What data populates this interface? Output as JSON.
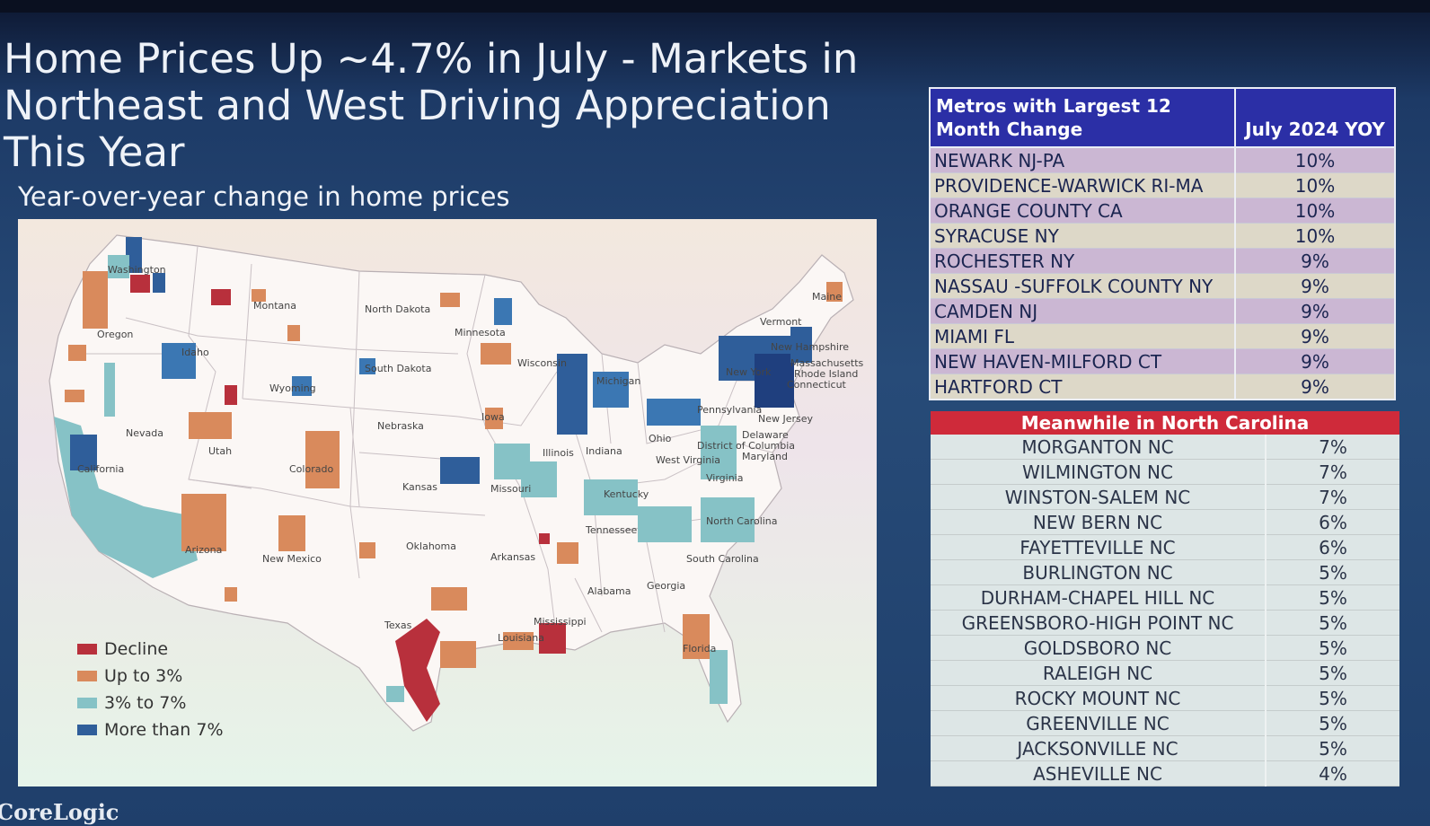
{
  "slide": {
    "title": "Home Prices Up ~4.7% in July - Markets in Northeast and West Driving Appreciation This Year",
    "subtitle": "Year-over-year change in home prices",
    "brand": "CoreLogic"
  },
  "map": {
    "state_labels": [
      "Washington",
      "Oregon",
      "Idaho",
      "Montana",
      "Wyoming",
      "Nevada",
      "Utah",
      "California",
      "Colorado",
      "Arizona",
      "New Mexico",
      "North Dakota",
      "South Dakota",
      "Nebraska",
      "Kansas",
      "Oklahoma",
      "Texas",
      "Minnesota",
      "Iowa",
      "Missouri",
      "Arkansas",
      "Louisiana",
      "Wisconsin",
      "Illinois",
      "Michigan",
      "Indiana",
      "Ohio",
      "Kentucky",
      "Tennessee",
      "Mississippi",
      "Alabama",
      "Georgia",
      "Florida",
      "South Carolina",
      "North Carolina",
      "Virginia",
      "West Virginia",
      "Pennsylvania",
      "New York",
      "Vermont",
      "New Hampshire",
      "Maine",
      "Massachusetts",
      "Rhode Island",
      "Connecticut",
      "New Jersey",
      "Delaware",
      "Maryland",
      "District of Columbia"
    ],
    "legend": [
      {
        "label": "Decline",
        "color": "#b8303c"
      },
      {
        "label": "Up to 3%",
        "color": "#d98a5c"
      },
      {
        "label": "3% to 7%",
        "color": "#86c2c6"
      },
      {
        "label": "More than 7%",
        "color": "#2f5e9a"
      }
    ]
  },
  "metros": {
    "header_left": "Metros with Largest 12 Month Change",
    "header_right": "July 2024 YOY",
    "rows": [
      {
        "name": "NEWARK NJ-PA",
        "value": "10%"
      },
      {
        "name": "PROVIDENCE-WARWICK RI-MA",
        "value": "10%"
      },
      {
        "name": "ORANGE COUNTY CA",
        "value": "10%"
      },
      {
        "name": "SYRACUSE NY",
        "value": "10%"
      },
      {
        "name": "ROCHESTER NY",
        "value": "9%"
      },
      {
        "name": "NASSAU -SUFFOLK COUNTY NY",
        "value": "9%"
      },
      {
        "name": "CAMDEN NJ",
        "value": "9%"
      },
      {
        "name": "MIAMI FL",
        "value": "9%"
      },
      {
        "name": "NEW HAVEN-MILFORD CT",
        "value": "9%"
      },
      {
        "name": "HARTFORD CT",
        "value": "9%"
      }
    ]
  },
  "north_carolina": {
    "header": "Meanwhile in North Carolina",
    "rows": [
      {
        "name": "MORGANTON NC",
        "value": "7%"
      },
      {
        "name": "WILMINGTON NC",
        "value": "7%"
      },
      {
        "name": "WINSTON-SALEM NC",
        "value": "7%"
      },
      {
        "name": "NEW BERN NC",
        "value": "6%"
      },
      {
        "name": "FAYETTEVILLE NC",
        "value": "6%"
      },
      {
        "name": "BURLINGTON NC",
        "value": "5%"
      },
      {
        "name": "DURHAM-CHAPEL HILL NC",
        "value": "5%"
      },
      {
        "name": "GREENSBORO-HIGH POINT NC",
        "value": "5%"
      },
      {
        "name": "GOLDSBORO NC",
        "value": "5%"
      },
      {
        "name": "RALEIGH NC",
        "value": "5%"
      },
      {
        "name": "ROCKY MOUNT NC",
        "value": "5%"
      },
      {
        "name": "GREENVILLE NC",
        "value": "5%"
      },
      {
        "name": "JACKSONVILLE NC",
        "value": "5%"
      },
      {
        "name": "ASHEVILLE NC",
        "value": "4%"
      }
    ]
  }
}
